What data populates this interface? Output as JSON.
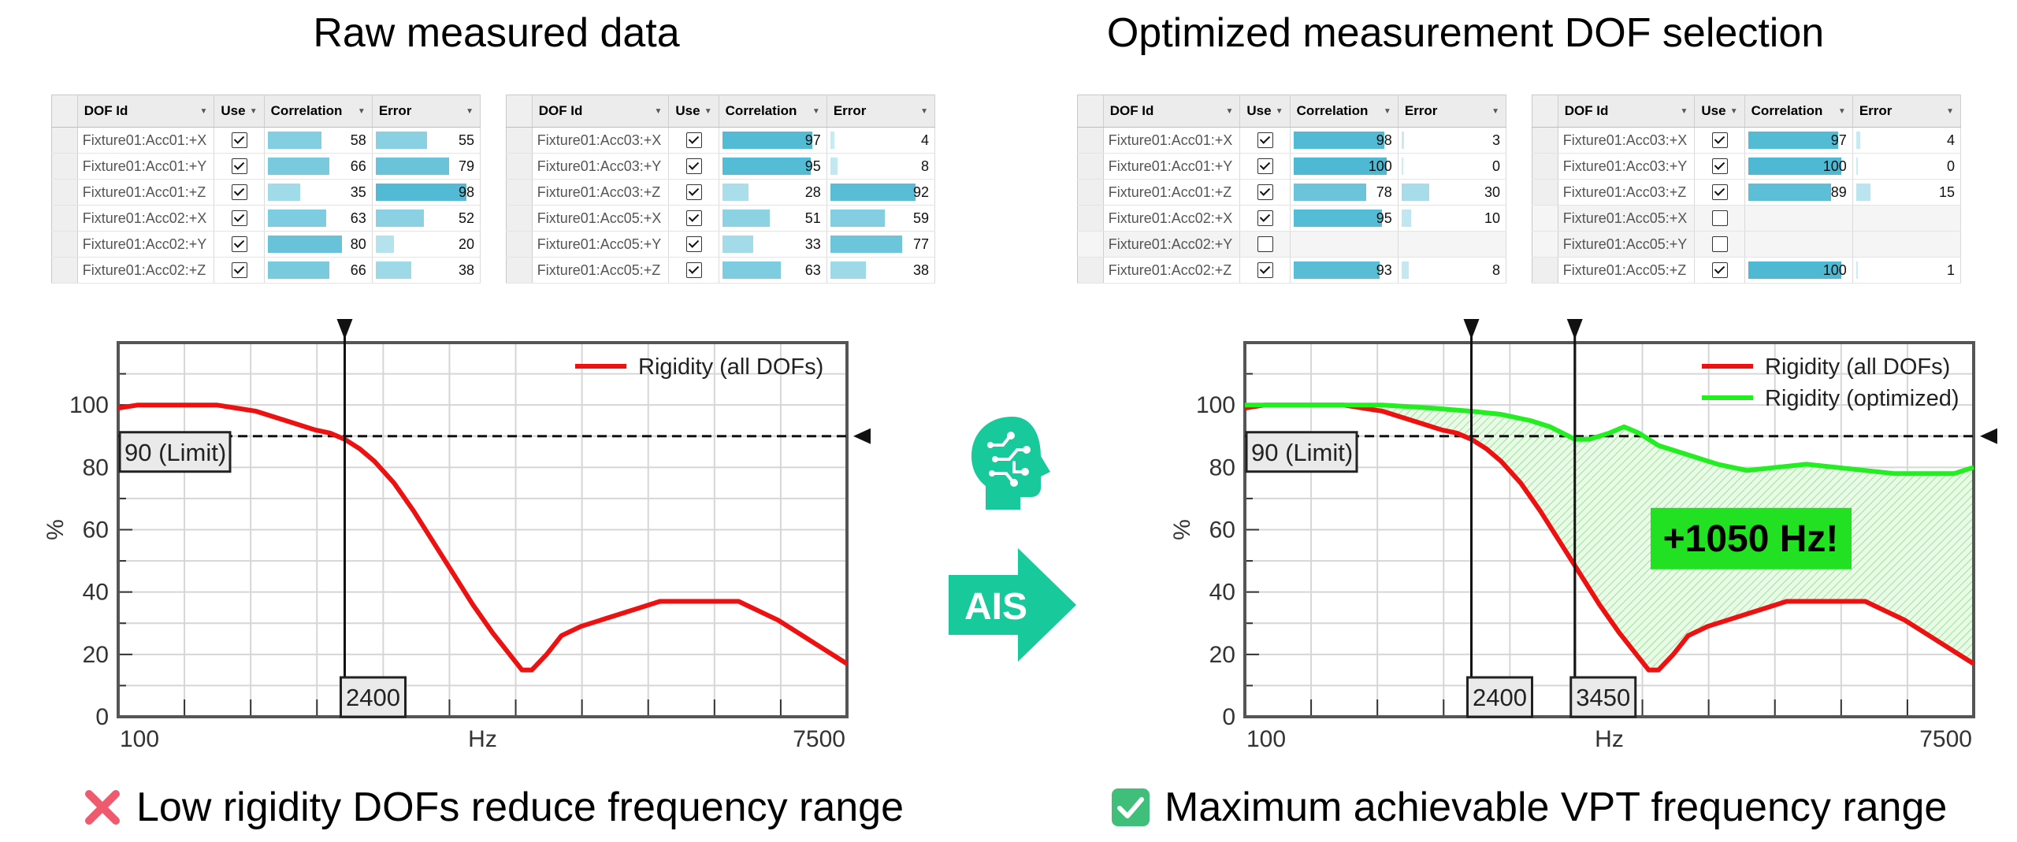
{
  "left": {
    "title": "Raw measured data",
    "caption": "Low rigidity DOFs reduce frequency range",
    "caption_icon": "cross-mark-icon",
    "tables": [
      {
        "headers": [
          "DOF Id",
          "Use",
          "Correlation",
          "Error"
        ],
        "rows": [
          {
            "id": "Fixture01:Acc01:+X",
            "use": true,
            "correlation": 58,
            "error": 55
          },
          {
            "id": "Fixture01:Acc01:+Y",
            "use": true,
            "correlation": 66,
            "error": 79
          },
          {
            "id": "Fixture01:Acc01:+Z",
            "use": true,
            "correlation": 35,
            "error": 98
          },
          {
            "id": "Fixture01:Acc02:+X",
            "use": true,
            "correlation": 63,
            "error": 52
          },
          {
            "id": "Fixture01:Acc02:+Y",
            "use": true,
            "correlation": 80,
            "error": 20
          },
          {
            "id": "Fixture01:Acc02:+Z",
            "use": true,
            "correlation": 66,
            "error": 38
          }
        ]
      },
      {
        "headers": [
          "DOF Id",
          "Use",
          "Correlation",
          "Error"
        ],
        "rows": [
          {
            "id": "Fixture01:Acc03:+X",
            "use": true,
            "correlation": 97,
            "error": 4
          },
          {
            "id": "Fixture01:Acc03:+Y",
            "use": true,
            "correlation": 95,
            "error": 8
          },
          {
            "id": "Fixture01:Acc03:+Z",
            "use": true,
            "correlation": 28,
            "error": 92
          },
          {
            "id": "Fixture01:Acc05:+X",
            "use": true,
            "correlation": 51,
            "error": 59
          },
          {
            "id": "Fixture01:Acc05:+Y",
            "use": true,
            "correlation": 33,
            "error": 77
          },
          {
            "id": "Fixture01:Acc05:+Z",
            "use": true,
            "correlation": 63,
            "error": 38
          }
        ]
      }
    ]
  },
  "right": {
    "title": "Optimized measurement DOF selection",
    "caption": "Maximum achievable VPT frequency range",
    "caption_icon": "check-mark-icon",
    "callout": "+1050 Hz!",
    "tables": [
      {
        "headers": [
          "DOF Id",
          "Use",
          "Correlation",
          "Error"
        ],
        "rows": [
          {
            "id": "Fixture01:Acc01:+X",
            "use": true,
            "correlation": 98,
            "error": 3
          },
          {
            "id": "Fixture01:Acc01:+Y",
            "use": true,
            "correlation": 100,
            "error": 0
          },
          {
            "id": "Fixture01:Acc01:+Z",
            "use": true,
            "correlation": 78,
            "error": 30
          },
          {
            "id": "Fixture01:Acc02:+X",
            "use": true,
            "correlation": 95,
            "error": 10
          },
          {
            "id": "Fixture01:Acc02:+Y",
            "use": false,
            "correlation": null,
            "error": null
          },
          {
            "id": "Fixture01:Acc02:+Z",
            "use": true,
            "correlation": 93,
            "error": 8
          }
        ]
      },
      {
        "headers": [
          "DOF Id",
          "Use",
          "Correlation",
          "Error"
        ],
        "rows": [
          {
            "id": "Fixture01:Acc03:+X",
            "use": true,
            "correlation": 97,
            "error": 4
          },
          {
            "id": "Fixture01:Acc03:+Y",
            "use": true,
            "correlation": 100,
            "error": 0
          },
          {
            "id": "Fixture01:Acc03:+Z",
            "use": true,
            "correlation": 89,
            "error": 15
          },
          {
            "id": "Fixture01:Acc05:+X",
            "use": false,
            "correlation": null,
            "error": null
          },
          {
            "id": "Fixture01:Acc05:+Y",
            "use": false,
            "correlation": null,
            "error": null
          },
          {
            "id": "Fixture01:Acc05:+Z",
            "use": true,
            "correlation": 100,
            "error": 1
          }
        ]
      }
    ]
  },
  "middle": {
    "arrow_label": "AIS",
    "head_icon": "ai-head-icon"
  },
  "colors": {
    "rigidity_all": "#ee1111",
    "rigidity_optimized": "#22ee22",
    "accent": "#17c99b",
    "bar_fill": "#4fb9d3",
    "callout_bg": "#22e022"
  },
  "chart_data": [
    {
      "type": "line",
      "xlabel": "Hz",
      "ylabel": "%",
      "x_tick_labels": [
        "100",
        "7500"
      ],
      "x_range": [
        100,
        7500
      ],
      "ylim": [
        0,
        120
      ],
      "y_ticks": [
        0,
        20,
        40,
        60,
        80,
        100
      ],
      "grid": true,
      "limit": {
        "value": 90,
        "label": "90 (Limit)"
      },
      "markers": [
        {
          "x": 2400,
          "label": "2400"
        }
      ],
      "legend": "top-right",
      "series": [
        {
          "name": "Rigidity (all DOFs)",
          "x": [
            100,
            300,
            500,
            800,
            1100,
            1300,
            1500,
            1700,
            1900,
            2100,
            2250,
            2400,
            2550,
            2700,
            2900,
            3100,
            3300,
            3500,
            3700,
            3900,
            4100,
            4200,
            4300,
            4450,
            4600,
            4800,
            5000,
            5200,
            5400,
            5600,
            5800,
            6000,
            6200,
            6400,
            6600,
            6800,
            7000,
            7200,
            7400,
            7500
          ],
          "values": [
            99,
            100,
            100,
            100,
            100,
            99,
            98,
            96,
            94,
            92,
            91,
            89,
            86,
            82,
            75,
            66,
            56,
            46,
            36,
            27,
            19,
            15,
            15,
            20,
            26,
            29,
            31,
            33,
            35,
            37,
            37,
            37,
            37,
            37,
            34,
            31,
            27,
            23,
            19,
            17
          ]
        }
      ]
    },
    {
      "type": "line",
      "xlabel": "Hz",
      "ylabel": "%",
      "x_tick_labels": [
        "100",
        "7500"
      ],
      "x_range": [
        100,
        7500
      ],
      "ylim": [
        0,
        120
      ],
      "y_ticks": [
        0,
        20,
        40,
        60,
        80,
        100
      ],
      "grid": true,
      "limit": {
        "value": 90,
        "label": "90 (Limit)"
      },
      "markers": [
        {
          "x": 2400,
          "label": "2400"
        },
        {
          "x": 3450,
          "label": "3450"
        }
      ],
      "legend": "top-right",
      "annotation": "+1050 Hz!",
      "series": [
        {
          "name": "Rigidity (all DOFs)",
          "x": [
            100,
            300,
            500,
            800,
            1100,
            1300,
            1500,
            1700,
            1900,
            2100,
            2250,
            2400,
            2550,
            2700,
            2900,
            3100,
            3300,
            3500,
            3700,
            3900,
            4100,
            4200,
            4300,
            4450,
            4600,
            4800,
            5000,
            5200,
            5400,
            5600,
            5800,
            6000,
            6200,
            6400,
            6600,
            6800,
            7000,
            7200,
            7400,
            7500
          ],
          "values": [
            99,
            100,
            100,
            100,
            100,
            99,
            98,
            96,
            94,
            92,
            91,
            89,
            86,
            82,
            75,
            66,
            56,
            46,
            36,
            27,
            19,
            15,
            15,
            20,
            26,
            29,
            31,
            33,
            35,
            37,
            37,
            37,
            37,
            37,
            34,
            31,
            27,
            23,
            19,
            17
          ]
        },
        {
          "name": "Rigidity (optimized)",
          "x": [
            100,
            500,
            1000,
            1500,
            2000,
            2400,
            2700,
            3000,
            3200,
            3450,
            3600,
            3800,
            3950,
            4100,
            4300,
            4600,
            4900,
            5200,
            5500,
            5800,
            6100,
            6400,
            6700,
            7000,
            7300,
            7500
          ],
          "values": [
            100,
            100,
            100,
            100,
            99,
            98,
            97,
            95,
            93,
            89,
            89,
            91,
            93,
            91,
            87,
            84,
            81,
            79,
            80,
            81,
            80,
            79,
            78,
            78,
            78,
            80
          ]
        }
      ]
    }
  ]
}
